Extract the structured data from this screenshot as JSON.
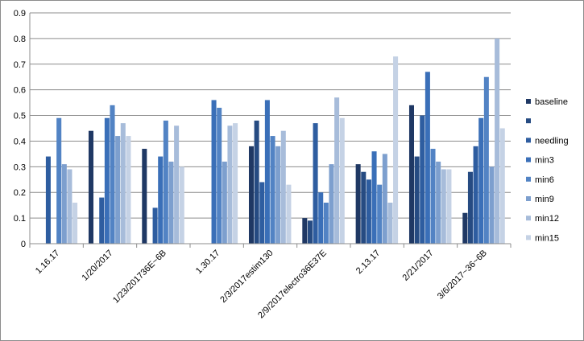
{
  "chart_data": {
    "type": "bar",
    "title": "",
    "xlabel": "",
    "ylabel": "",
    "ylim": [
      0,
      0.9
    ],
    "yticks": [
      "0",
      "0.1",
      "0.2",
      "0.3",
      "0.4",
      "0.5",
      "0.6",
      "0.7",
      "0.8",
      "0.9"
    ],
    "grid": true,
    "legend_position": "right",
    "categories": [
      "1.16.17",
      "1/20/2017",
      "1/23/201736E~6B",
      "1.30.17",
      "2/3/2017estim130",
      "2/9/2017electro36E37E",
      "2.13.17",
      "2/21/2017",
      "3/6/2017~36~6B"
    ],
    "series": [
      {
        "name": "baseline",
        "color": "#1f3864",
        "values": [
          null,
          0.44,
          0.37,
          null,
          0.38,
          0.1,
          0.31,
          0.54,
          0.12
        ]
      },
      {
        "name": "",
        "color": "#264b82",
        "values": [
          null,
          null,
          null,
          null,
          0.48,
          0.09,
          0.28,
          0.34,
          0.28
        ]
      },
      {
        "name": "needling",
        "color": "#2e5da0",
        "values": [
          0.34,
          0.18,
          0.14,
          null,
          0.24,
          0.47,
          0.25,
          0.5,
          0.38
        ]
      },
      {
        "name": "min3",
        "color": "#3a6fb8",
        "values": [
          null,
          0.49,
          0.34,
          0.56,
          0.56,
          0.2,
          0.36,
          0.67,
          0.49
        ]
      },
      {
        "name": "min6",
        "color": "#5283c4",
        "values": [
          0.49,
          0.54,
          0.48,
          0.53,
          0.42,
          0.16,
          0.23,
          0.37,
          0.65
        ]
      },
      {
        "name": "min9",
        "color": "#7d9fce",
        "values": [
          0.31,
          0.42,
          0.32,
          0.32,
          0.38,
          0.31,
          0.35,
          0.32,
          0.3
        ]
      },
      {
        "name": "min12",
        "color": "#a7bcda",
        "values": [
          0.29,
          0.47,
          0.46,
          0.46,
          0.44,
          0.57,
          0.16,
          0.29,
          0.8
        ]
      },
      {
        "name": "min15",
        "color": "#c5d2e5",
        "values": [
          0.16,
          0.42,
          0.3,
          0.47,
          0.23,
          0.49,
          0.73,
          0.29,
          0.45
        ]
      }
    ]
  }
}
